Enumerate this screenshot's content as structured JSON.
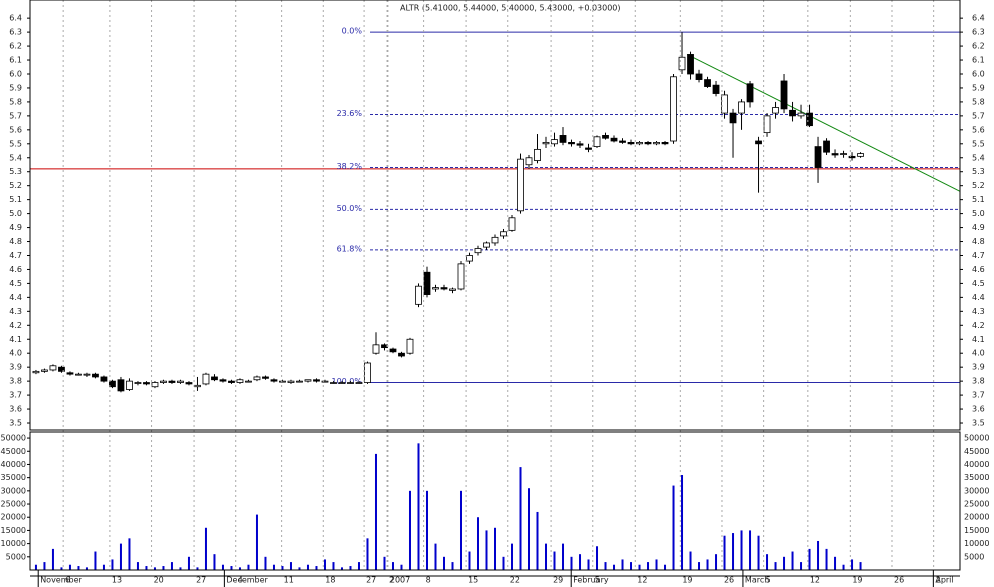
{
  "chart_data": [
    {
      "type": "candlestick",
      "title": "ALTR (5.41000, 5.44000, 5.40000, 5.43000, +0.03000)",
      "open": [
        3.86,
        3.87,
        3.88,
        3.9,
        3.86,
        3.85,
        3.85,
        3.85,
        3.83,
        3.8,
        3.81,
        3.74,
        3.79,
        3.79,
        3.76,
        3.79,
        3.8,
        3.79,
        3.79,
        3.76,
        3.78,
        3.83,
        3.81,
        3.8,
        3.79,
        3.8,
        3.81,
        3.83,
        3.81,
        3.8,
        3.79,
        3.8,
        3.8,
        3.81,
        3.8,
        3.79,
        3.79,
        3.79,
        3.79,
        3.79,
        4.0,
        4.06,
        4.03,
        4.0,
        4.0,
        4.35,
        4.58,
        4.46,
        4.47,
        4.45,
        4.46,
        4.66,
        4.72,
        4.76,
        4.79,
        4.84,
        4.88,
        5.02,
        5.35,
        5.38,
        5.5,
        5.5,
        5.56,
        5.51,
        5.5,
        5.47,
        5.48,
        5.56,
        5.54,
        5.52,
        5.51,
        5.5,
        5.51,
        5.5,
        5.51,
        5.52,
        6.03,
        6.14,
        6.0,
        5.96,
        5.92,
        5.72,
        5.72,
        5.72,
        5.93,
        5.52,
        5.58,
        5.72,
        5.95,
        5.74,
        5.7,
        5.72,
        5.48,
        5.52,
        5.43,
        5.43,
        5.41,
        5.41
      ],
      "high": [
        3.88,
        3.89,
        3.92,
        3.91,
        3.87,
        3.86,
        3.86,
        3.86,
        3.84,
        3.81,
        3.83,
        3.82,
        3.8,
        3.8,
        3.8,
        3.81,
        3.81,
        3.81,
        3.8,
        3.83,
        3.86,
        3.85,
        3.82,
        3.81,
        3.82,
        3.81,
        3.84,
        3.84,
        3.82,
        3.81,
        3.81,
        3.81,
        3.81,
        3.82,
        3.81,
        3.8,
        3.8,
        3.8,
        3.8,
        3.94,
        4.15,
        4.07,
        4.04,
        4.01,
        4.11,
        4.5,
        4.62,
        4.49,
        4.49,
        4.47,
        4.66,
        4.72,
        4.77,
        4.8,
        4.85,
        4.89,
        4.99,
        5.43,
        5.42,
        5.57,
        5.55,
        5.58,
        5.62,
        5.53,
        5.52,
        5.5,
        5.56,
        5.58,
        5.56,
        5.54,
        5.53,
        5.52,
        5.52,
        5.52,
        5.52,
        6.0,
        6.3,
        6.16,
        6.03,
        5.98,
        5.95,
        5.88,
        5.75,
        5.82,
        5.95,
        5.55,
        5.72,
        5.8,
        6.0,
        5.8,
        5.78,
        5.78,
        5.55,
        5.54,
        5.46,
        5.45,
        5.44,
        5.44
      ],
      "low": [
        3.85,
        3.86,
        3.87,
        3.86,
        3.84,
        3.84,
        3.83,
        3.82,
        3.79,
        3.75,
        3.72,
        3.73,
        3.77,
        3.77,
        3.75,
        3.78,
        3.78,
        3.78,
        3.77,
        3.73,
        3.77,
        3.8,
        3.79,
        3.78,
        3.78,
        3.79,
        3.8,
        3.81,
        3.79,
        3.79,
        3.78,
        3.79,
        3.79,
        3.79,
        3.79,
        3.78,
        3.78,
        3.78,
        3.78,
        3.78,
        3.99,
        4.02,
        4.0,
        3.97,
        3.99,
        4.33,
        4.4,
        4.44,
        4.45,
        4.43,
        4.45,
        4.64,
        4.7,
        4.74,
        4.77,
        4.82,
        4.87,
        5.0,
        5.32,
        5.36,
        5.47,
        5.48,
        5.49,
        5.48,
        5.47,
        5.44,
        5.47,
        5.53,
        5.51,
        5.5,
        5.49,
        5.49,
        5.49,
        5.49,
        5.49,
        5.5,
        6.0,
        5.96,
        5.94,
        5.9,
        5.84,
        5.68,
        5.4,
        5.6,
        5.76,
        5.15,
        5.55,
        5.68,
        5.72,
        5.66,
        5.68,
        5.62,
        5.22,
        5.42,
        5.4,
        5.4,
        5.38,
        5.4
      ],
      "close": [
        3.87,
        3.88,
        3.91,
        3.87,
        3.85,
        3.85,
        3.85,
        3.83,
        3.8,
        3.76,
        3.73,
        3.8,
        3.79,
        3.78,
        3.79,
        3.8,
        3.79,
        3.8,
        3.78,
        3.77,
        3.85,
        3.81,
        3.8,
        3.79,
        3.81,
        3.8,
        3.83,
        3.82,
        3.8,
        3.8,
        3.8,
        3.8,
        3.81,
        3.8,
        3.8,
        3.79,
        3.79,
        3.79,
        3.79,
        3.93,
        4.06,
        4.04,
        4.01,
        3.98,
        4.1,
        4.48,
        4.42,
        4.47,
        4.46,
        4.46,
        4.64,
        4.7,
        4.75,
        4.79,
        4.83,
        4.87,
        4.97,
        5.39,
        5.4,
        5.46,
        5.51,
        5.53,
        5.51,
        5.5,
        5.49,
        5.46,
        5.55,
        5.54,
        5.52,
        5.51,
        5.5,
        5.51,
        5.5,
        5.51,
        5.5,
        5.98,
        6.12,
        6.0,
        5.96,
        5.91,
        5.86,
        5.85,
        5.65,
        5.8,
        5.8,
        5.5,
        5.7,
        5.76,
        5.75,
        5.7,
        5.72,
        5.63,
        5.33,
        5.44,
        5.42,
        5.43,
        5.4,
        5.43
      ],
      "xlim": [
        -0.7,
        108.7
      ],
      "ylim": [
        3.45,
        6.53
      ],
      "yticks": [
        3.5,
        3.6,
        3.7,
        3.8,
        3.9,
        {
          "value": 4,
          "label": "4.0"
        },
        4.1,
        4.2,
        4.3,
        4.4,
        4.5,
        4.6,
        4.7,
        4.8,
        4.9,
        {
          "value": 5,
          "label": "5.0"
        },
        5.1,
        5.2,
        5.3,
        5.4,
        5.5,
        5.6,
        5.7,
        5.8,
        5.9,
        {
          "value": 6,
          "label": "6.0"
        },
        6.1,
        6.2,
        6.3,
        6.4
      ],
      "levels": [
        {
          "label": "0.0%",
          "value": 6.3,
          "dashed": false
        },
        {
          "label": "23.6%",
          "value": 5.71,
          "dashed": true
        },
        {
          "label": "38.2%",
          "value": 5.33,
          "dashed": true
        },
        {
          "label": "50.0%",
          "value": 5.03,
          "dashed": true
        },
        {
          "label": "61.8%",
          "value": 4.74,
          "dashed": true
        },
        {
          "label": "100.0%",
          "value": 3.79,
          "dashed": false
        }
      ],
      "level_color": "#2a2aa8",
      "hline": {
        "value": 5.32,
        "color": "#cc0000"
      },
      "trendline": {
        "x": [
          76.6,
          108.7
        ],
        "y": [
          6.14,
          5.16
        ],
        "color": "#118811"
      }
    },
    {
      "type": "bar",
      "values": [
        2000,
        3000,
        8000,
        1000,
        2000,
        1500,
        1000,
        7000,
        2000,
        4000,
        10000,
        12000,
        3000,
        1500,
        1000,
        1500,
        3000,
        1000,
        5000,
        1000,
        16000,
        6000,
        2000,
        1500,
        1000,
        2000,
        21000,
        5000,
        2000,
        1500,
        3000,
        1000,
        2000,
        1500,
        4000,
        3000,
        1000,
        1500,
        3000,
        12000,
        44000,
        5000,
        3000,
        2000,
        30000,
        48000,
        30000,
        10000,
        5000,
        3000,
        30000,
        7000,
        20000,
        15000,
        16000,
        5000,
        10000,
        39000,
        31000,
        22000,
        10000,
        7000,
        10000,
        5000,
        6000,
        4000,
        9000,
        3000,
        2000,
        4000,
        3000,
        2000,
        3000,
        4000,
        2000,
        32000,
        36000,
        7000,
        3000,
        4000,
        6000,
        13000,
        14000,
        15000,
        15000,
        13000,
        6000,
        3000,
        5000,
        7000,
        3000,
        8000,
        11000,
        8000,
        5000,
        2000,
        4000,
        3000
      ],
      "color": "#0000cc",
      "xlim": [
        -0.7,
        108.7
      ],
      "ylim": [
        0,
        52300
      ],
      "yticks": [
        5000,
        10000,
        15000,
        20000,
        25000,
        30000,
        35000,
        40000,
        45000,
        50000
      ],
      "xticks": [
        {
          "value": 0.5,
          "label": "November"
        },
        {
          "value": 3.2,
          "label": "6"
        },
        {
          "value": 8.7,
          "label": "13"
        },
        {
          "value": 13.6,
          "label": "20"
        },
        {
          "value": 18.6,
          "label": "27"
        },
        {
          "value": 22.4,
          "label": "December"
        },
        {
          "value": 23.5,
          "label": "4"
        },
        {
          "value": 28.9,
          "label": "11"
        },
        {
          "value": 33.8,
          "label": "18"
        },
        {
          "value": 38.6,
          "label": "27"
        },
        {
          "value": 41.3,
          "label": "2"
        },
        {
          "value": 41.4,
          "label": "2007"
        },
        {
          "value": 45.6,
          "label": "8"
        },
        {
          "value": 50.6,
          "label": "15"
        },
        {
          "value": 55.5,
          "label": "22"
        },
        {
          "value": 60.6,
          "label": "29"
        },
        {
          "value": 63.2,
          "label": "February"
        },
        {
          "value": 65.5,
          "label": "5"
        },
        {
          "value": 70.5,
          "label": "12"
        },
        {
          "value": 75.8,
          "label": "19"
        },
        {
          "value": 80.7,
          "label": "26"
        },
        {
          "value": 83.4,
          "label": "March"
        },
        {
          "value": 85.6,
          "label": "5"
        },
        {
          "value": 90.8,
          "label": "12"
        },
        {
          "value": 95.8,
          "label": "19"
        },
        {
          "value": 100.7,
          "label": "26"
        },
        {
          "value": 105.6,
          "label": "2"
        },
        {
          "value": 105.8,
          "label": "April"
        }
      ]
    }
  ]
}
